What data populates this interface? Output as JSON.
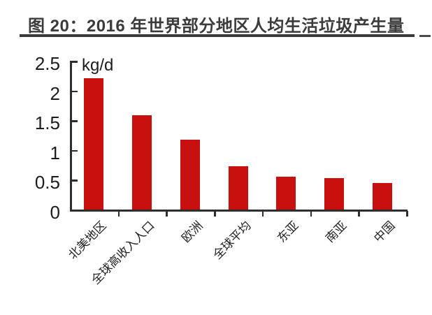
{
  "title": {
    "text": "图 20：2016 年世界部分地区人均生活垃圾产生量"
  },
  "chart_data": {
    "type": "bar",
    "title": "图 20：2016 年世界部分地区人均生活垃圾产生量",
    "unit_label": "kg/d",
    "categories": [
      "北美地区",
      "全球高收入人口",
      "欧洲",
      "全球平均",
      "东亚",
      "南亚",
      "中国"
    ],
    "values": [
      2.21,
      1.58,
      1.17,
      0.73,
      0.55,
      0.53,
      0.45
    ],
    "xlabel": "",
    "ylabel": "kg/d",
    "ylim": [
      0,
      2.5
    ],
    "ytick_interval": 0.5,
    "yticks": [
      {
        "label": "0",
        "value": 0
      },
      {
        "label": "0.5",
        "value": 0.5
      },
      {
        "label": "1",
        "value": 1
      },
      {
        "label": "1.5",
        "value": 1.5
      },
      {
        "label": "2",
        "value": 2
      },
      {
        "label": "2.5",
        "value": 2.5
      }
    ],
    "grid": "off",
    "legend": "none",
    "bar_color": "#c8100e",
    "axis_color": "#2e2e2e",
    "text_color": "#1c1c1c",
    "title_color": "#3b3b3b"
  }
}
